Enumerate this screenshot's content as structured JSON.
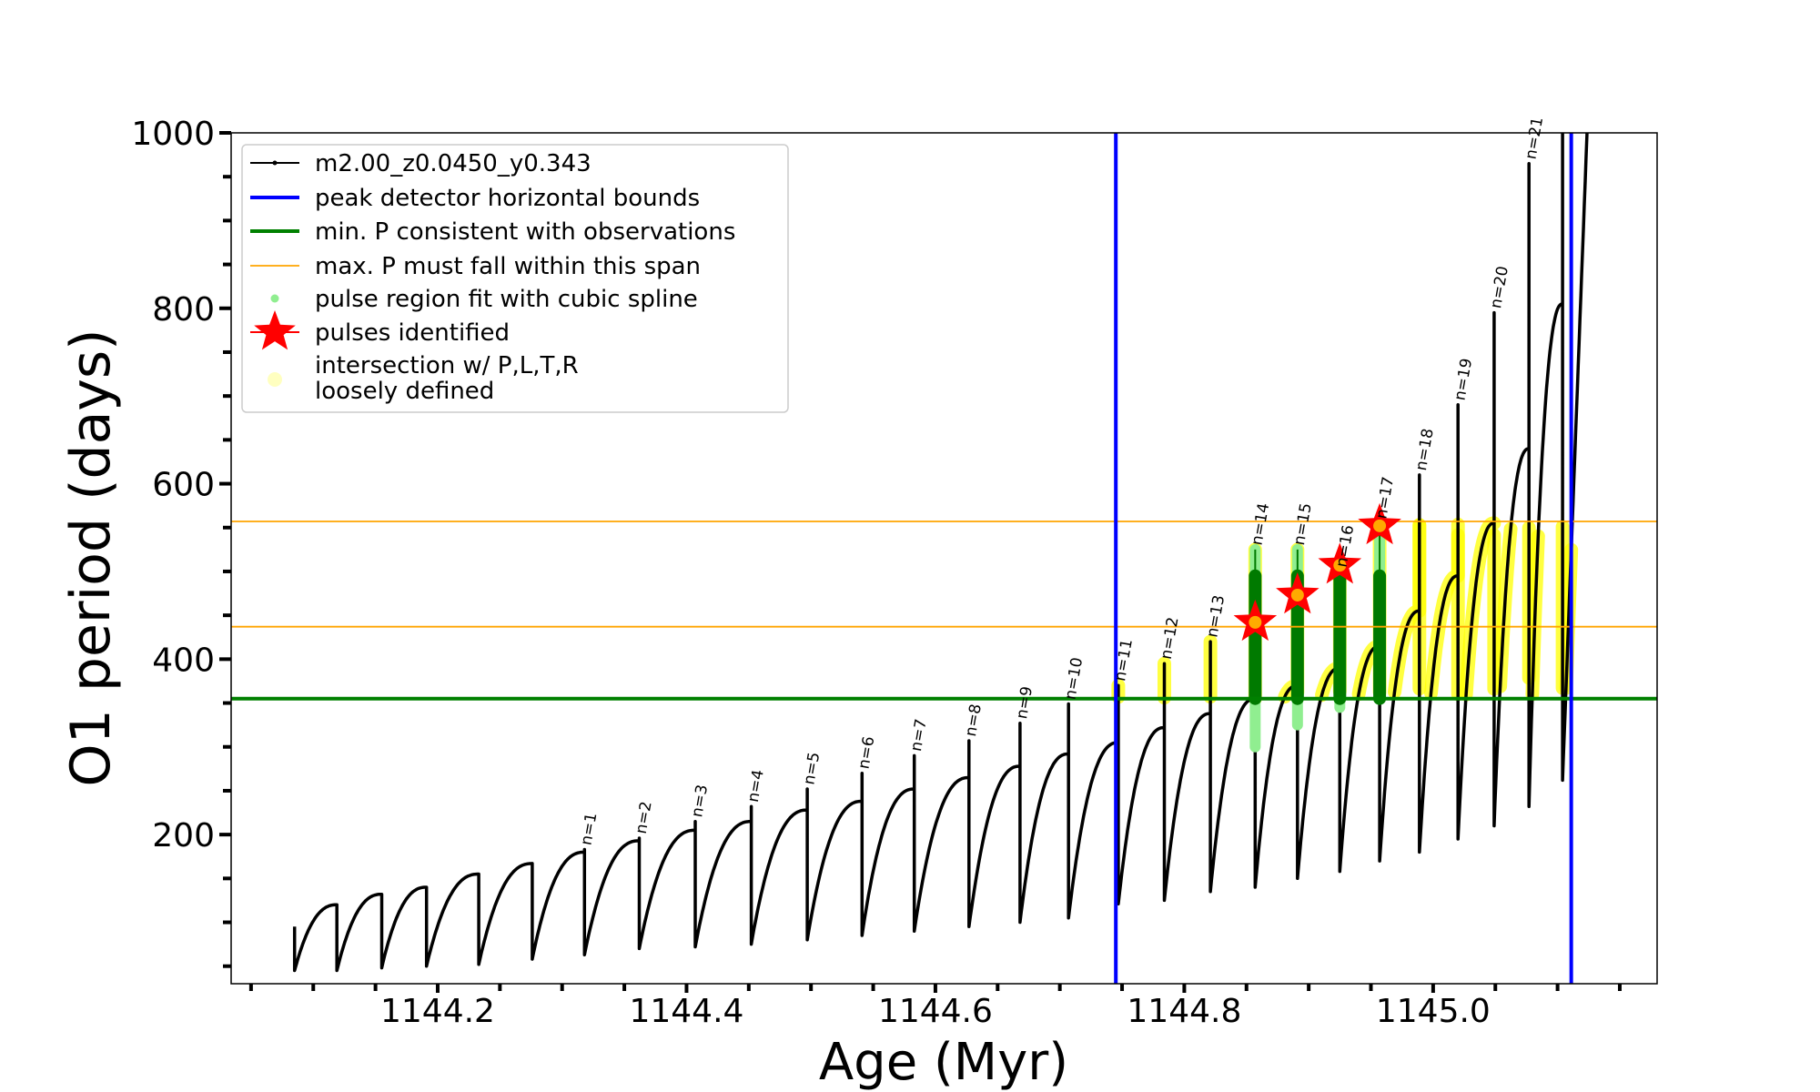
{
  "chart_data": {
    "type": "line",
    "title": "",
    "xlabel": "Age (Myr)",
    "ylabel": "O1 period (days)",
    "xlim": [
      1144.034,
      1145.18
    ],
    "ylim": [
      30,
      1000
    ],
    "xticks": [
      1144.2,
      1144.4,
      1144.6,
      1144.8,
      1145.0
    ],
    "xtick_labels": [
      "1144.2",
      "1144.4",
      "1144.6",
      "1144.8",
      "1145.0"
    ],
    "xminor_step": 0.05,
    "yticks": [
      200,
      400,
      600,
      800,
      1000
    ],
    "ytick_labels": [
      "200",
      "400",
      "600",
      "800",
      "1000"
    ],
    "yminor_step": 50,
    "grid": false,
    "legend_position": "upper-left",
    "colors": {
      "track": "#000000",
      "bounds": "#0000ff",
      "min_p": "#008000",
      "max_p": "#ffa500",
      "spline": "#90ee90",
      "spline_dark": "#007a00",
      "pulses": "#ff0000",
      "intersection": "#ffff00",
      "intersection_legend": "#ffffc0"
    },
    "legend": [
      {
        "label": "m2.00_z0.0450_y0.343",
        "marker": "line-dot"
      },
      {
        "label": "peak detector horizontal bounds",
        "marker": "thick-line-blue"
      },
      {
        "label": "min. P consistent with observations",
        "marker": "thick-line-green"
      },
      {
        "label": "max. P must fall within this span",
        "marker": "thin-line-orange"
      },
      {
        "label": "pulse region fit with cubic spline",
        "marker": "dot-lightgreen"
      },
      {
        "label": "pulses identified",
        "marker": "star-red"
      },
      {
        "label": "intersection w/ P,L,T,R",
        "label2": "loosely defined",
        "marker": "circle-paleyellow"
      }
    ],
    "series": {
      "track": {
        "drop_ages": [
          1144.085,
          1144.119,
          1144.155,
          1144.191,
          1144.233,
          1144.276,
          1144.318,
          1144.362,
          1144.407,
          1144.452,
          1144.497,
          1144.541,
          1144.583,
          1144.627,
          1144.668,
          1144.707,
          1144.747,
          1144.784,
          1144.821,
          1144.857,
          1144.891,
          1144.925,
          1144.957,
          1144.989,
          1145.02,
          1145.049,
          1145.077,
          1145.104
        ],
        "minima_after_drop": [
          45,
          45,
          48,
          50,
          52,
          58,
          63,
          70,
          72,
          75,
          80,
          85,
          90,
          95,
          100,
          105,
          121,
          125,
          135,
          140,
          150,
          158,
          170,
          180,
          195,
          210,
          232,
          262
        ],
        "peaks_before_drop": [
          120,
          132,
          140,
          155,
          167,
          180,
          193,
          205,
          215,
          228,
          238,
          252,
          265,
          278,
          292,
          305,
          322,
          338,
          355,
          370,
          390,
          415,
          455,
          495,
          555,
          640,
          805
        ],
        "start_value": 95,
        "final_rise": {
          "age_end": 1145.125,
          "value_end": 1050
        }
      },
      "pulses": [
        {
          "n": 1,
          "age": 1144.318,
          "spike": 183
        },
        {
          "n": 2,
          "age": 1144.362,
          "spike": 196
        },
        {
          "n": 3,
          "age": 1144.407,
          "spike": 215
        },
        {
          "n": 4,
          "age": 1144.452,
          "spike": 232
        },
        {
          "n": 5,
          "age": 1144.497,
          "spike": 252
        },
        {
          "n": 6,
          "age": 1144.541,
          "spike": 270
        },
        {
          "n": 7,
          "age": 1144.583,
          "spike": 290
        },
        {
          "n": 8,
          "age": 1144.627,
          "spike": 307
        },
        {
          "n": 9,
          "age": 1144.668,
          "spike": 327
        },
        {
          "n": 10,
          "age": 1144.707,
          "spike": 349
        },
        {
          "n": 11,
          "age": 1144.747,
          "spike": 370
        },
        {
          "n": 12,
          "age": 1144.784,
          "spike": 395
        },
        {
          "n": 13,
          "age": 1144.821,
          "spike": 420
        },
        {
          "n": 14,
          "age": 1144.857,
          "spike": 525
        },
        {
          "n": 15,
          "age": 1144.891,
          "spike": 525
        },
        {
          "n": 16,
          "age": 1144.925,
          "spike": 500
        },
        {
          "n": 17,
          "age": 1144.957,
          "spike": 555
        },
        {
          "n": 18,
          "age": 1144.989,
          "spike": 610
        },
        {
          "n": 19,
          "age": 1145.02,
          "spike": 690
        },
        {
          "n": 20,
          "age": 1145.049,
          "spike": 795
        },
        {
          "n": 21,
          "age": 1145.077,
          "spike": 965
        }
      ],
      "last_spike": {
        "age": 1145.104,
        "spike": 1050
      },
      "peak_detector_bounds": [
        1144.745,
        1145.111
      ],
      "min_p": 355,
      "max_p_span": [
        437,
        557
      ],
      "spline_regions": [
        {
          "n": 14,
          "light": [
            300,
            525
          ],
          "dark": [
            355,
            495
          ]
        },
        {
          "n": 15,
          "light": [
            325,
            525
          ],
          "dark": [
            355,
            495
          ]
        },
        {
          "n": 16,
          "light": [
            345,
            495
          ],
          "dark": [
            355,
            495
          ]
        },
        {
          "n": 17,
          "light": [
            355,
            550
          ],
          "dark": [
            355,
            495
          ]
        }
      ],
      "pulses_identified": [
        {
          "age": 1144.857,
          "period": 442
        },
        {
          "age": 1144.891,
          "period": 473
        },
        {
          "age": 1144.925,
          "period": 507
        },
        {
          "age": 1144.957,
          "period": 552
        }
      ]
    }
  }
}
